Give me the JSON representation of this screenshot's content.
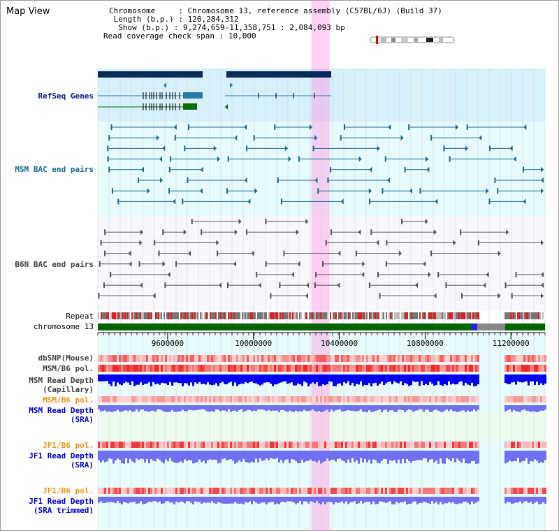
{
  "title": "Map View",
  "info": {
    "chromosome_label": "Chromosome",
    "chromosome_value": "Chromosome 13, reference assembly (C57BL/6J) (Build 37)",
    "length_label": "Length (b.p.)",
    "length_value": "120,284,312",
    "show_label": "Show (b.p.)",
    "show_value": "9,274,659-11,358,751 : 2,084,093 bp",
    "coverage_label": "Read coverage check span",
    "coverage_value": "10,000"
  },
  "view": {
    "start": 9274659,
    "end": 11358751
  },
  "highlight": {
    "start": 10270000,
    "end": 10355000
  },
  "ticks": [
    {
      "pos": 9600000,
      "label": "9600000"
    },
    {
      "pos": 10000000,
      "label": "10000000"
    },
    {
      "pos": 10400000,
      "label": "10400000"
    },
    {
      "pos": 10800000,
      "label": "10800000"
    },
    {
      "pos": 11200000,
      "label": "11200000"
    }
  ],
  "tracks": {
    "refseq": "RefSeq Genes",
    "msm_bac": "MSM BAC end pairs",
    "b6n_bac": "B6N BAC end pairs",
    "repeat": "Repeat",
    "chromosome": "chromosome 13",
    "dbsnp": "dbSNP(Mouse)",
    "msm_pol": "MSM/B6 pol.",
    "msm_depth_cap_1": "MSM Read Depth",
    "msm_depth_cap_2": "(Capillary)",
    "msm_pol_sra": "MSM/B6 pol.",
    "msm_depth_sra_1": "MSM Read Depth",
    "msm_depth_sra_2": "(SRA)",
    "jf1_pol": "JF1/B6 pol.",
    "jf1_depth_1": "JF1 Read Depth",
    "jf1_depth_2": "(SRA)",
    "jf1_pol_trim": "JF1/B6 pol.",
    "jf1_trim_1": "JF1 Read Depth",
    "jf1_trim_2": "(SRA trimmed)"
  },
  "colors": {
    "gene_navy": "#0a2a5a",
    "gene_mrna": "#2a7aa8",
    "gene_cds": "#0a6a0a",
    "bac_msm": "#1b6b8c",
    "bac_b6n": "#555555",
    "chrom_green": "#006400",
    "snp_red": "#ff3030",
    "depth_blue": "#0000ee",
    "depth_light": "#7070f0",
    "highlight_pink": "#ff90e0"
  }
}
